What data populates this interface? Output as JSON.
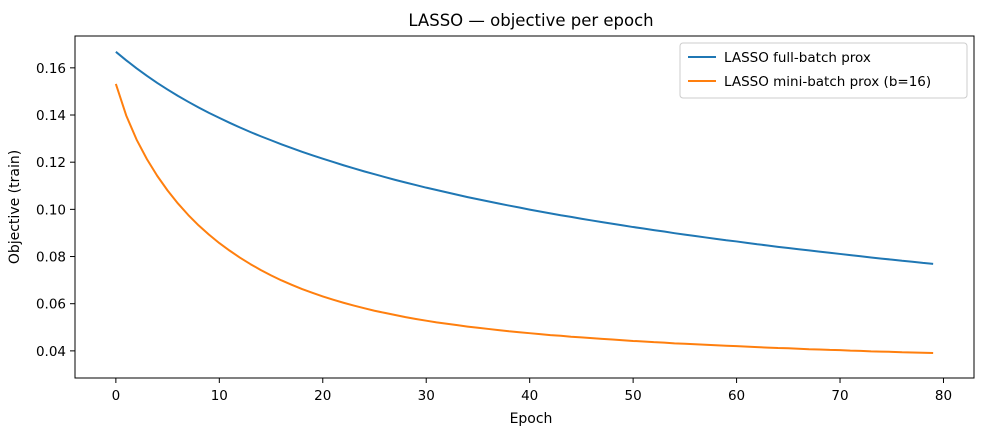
{
  "chart_data": {
    "type": "line",
    "title": "LASSO — objective per epoch",
    "xlabel": "Epoch",
    "ylabel": "Objective (train)",
    "xlim": [
      -3.95,
      82.95
    ],
    "ylim": [
      0.0285,
      0.1735
    ],
    "xticks": [
      0,
      10,
      20,
      30,
      40,
      50,
      60,
      70,
      80
    ],
    "yticks": [
      0.04,
      0.06,
      0.08,
      0.1,
      0.12,
      0.14,
      0.16
    ],
    "ytick_labels": [
      "0.04",
      "0.06",
      "0.08",
      "0.10",
      "0.12",
      "0.14",
      "0.16"
    ],
    "grid": false,
    "legend_position": "top-right",
    "x": [
      0,
      1,
      2,
      3,
      4,
      5,
      6,
      7,
      8,
      9,
      10,
      11,
      12,
      13,
      14,
      15,
      16,
      17,
      18,
      19,
      20,
      21,
      22,
      23,
      24,
      25,
      26,
      27,
      28,
      29,
      30,
      31,
      32,
      33,
      34,
      35,
      36,
      37,
      38,
      39,
      40,
      41,
      42,
      43,
      44,
      45,
      46,
      47,
      48,
      49,
      50,
      51,
      52,
      53,
      54,
      55,
      56,
      57,
      58,
      59,
      60,
      61,
      62,
      63,
      64,
      65,
      66,
      67,
      68,
      69,
      70,
      71,
      72,
      73,
      74,
      75,
      76,
      77,
      78,
      79
    ],
    "series": [
      {
        "name": "LASSO full-batch prox",
        "color": "#1f77b4",
        "values": [
          0.1668,
          0.1632,
          0.1598,
          0.1566,
          0.1536,
          0.1508,
          0.1481,
          0.1456,
          0.1432,
          0.1409,
          0.1388,
          0.1367,
          0.1347,
          0.1328,
          0.131,
          0.1293,
          0.1276,
          0.126,
          0.1244,
          0.1229,
          0.1215,
          0.1201,
          0.1187,
          0.1174,
          0.1161,
          0.1149,
          0.1137,
          0.1125,
          0.1114,
          0.1103,
          0.1092,
          0.1082,
          0.1072,
          0.1062,
          0.1052,
          0.1043,
          0.1034,
          0.1025,
          0.1016,
          0.1008,
          0.0999,
          0.0991,
          0.0983,
          0.0975,
          0.0968,
          0.096,
          0.0953,
          0.0946,
          0.0939,
          0.0932,
          0.0925,
          0.0919,
          0.0912,
          0.0906,
          0.0899,
          0.0893,
          0.0887,
          0.0881,
          0.0875,
          0.0869,
          0.0864,
          0.0858,
          0.0852,
          0.0847,
          0.0841,
          0.0836,
          0.0831,
          0.0826,
          0.0821,
          0.0816,
          0.0811,
          0.0806,
          0.0801,
          0.0796,
          0.0791,
          0.0787,
          0.0782,
          0.0778,
          0.0773,
          0.0769
        ]
      },
      {
        "name": "LASSO mini-batch prox (b=16)",
        "color": "#ff7f0e",
        "values": [
          0.1532,
          0.1398,
          0.1296,
          0.1213,
          0.1142,
          0.108,
          0.1025,
          0.0976,
          0.0932,
          0.0893,
          0.0857,
          0.0825,
          0.0795,
          0.0768,
          0.0743,
          0.072,
          0.0699,
          0.068,
          0.0662,
          0.0646,
          0.0631,
          0.0617,
          0.0604,
          0.0592,
          0.0581,
          0.057,
          0.0561,
          0.0552,
          0.0543,
          0.0535,
          0.0528,
          0.0521,
          0.0515,
          0.0509,
          0.0503,
          0.0498,
          0.0493,
          0.0488,
          0.0483,
          0.0479,
          0.0475,
          0.0471,
          0.0467,
          0.0464,
          0.046,
          0.0457,
          0.0454,
          0.0451,
          0.0448,
          0.0445,
          0.0442,
          0.044,
          0.0437,
          0.0435,
          0.0432,
          0.043,
          0.0428,
          0.0426,
          0.0424,
          0.0422,
          0.042,
          0.0418,
          0.0416,
          0.0414,
          0.0412,
          0.0411,
          0.0409,
          0.0407,
          0.0406,
          0.0404,
          0.0403,
          0.0401,
          0.04,
          0.0398,
          0.0397,
          0.0396,
          0.0394,
          0.0393,
          0.0392,
          0.0391
        ]
      }
    ]
  }
}
